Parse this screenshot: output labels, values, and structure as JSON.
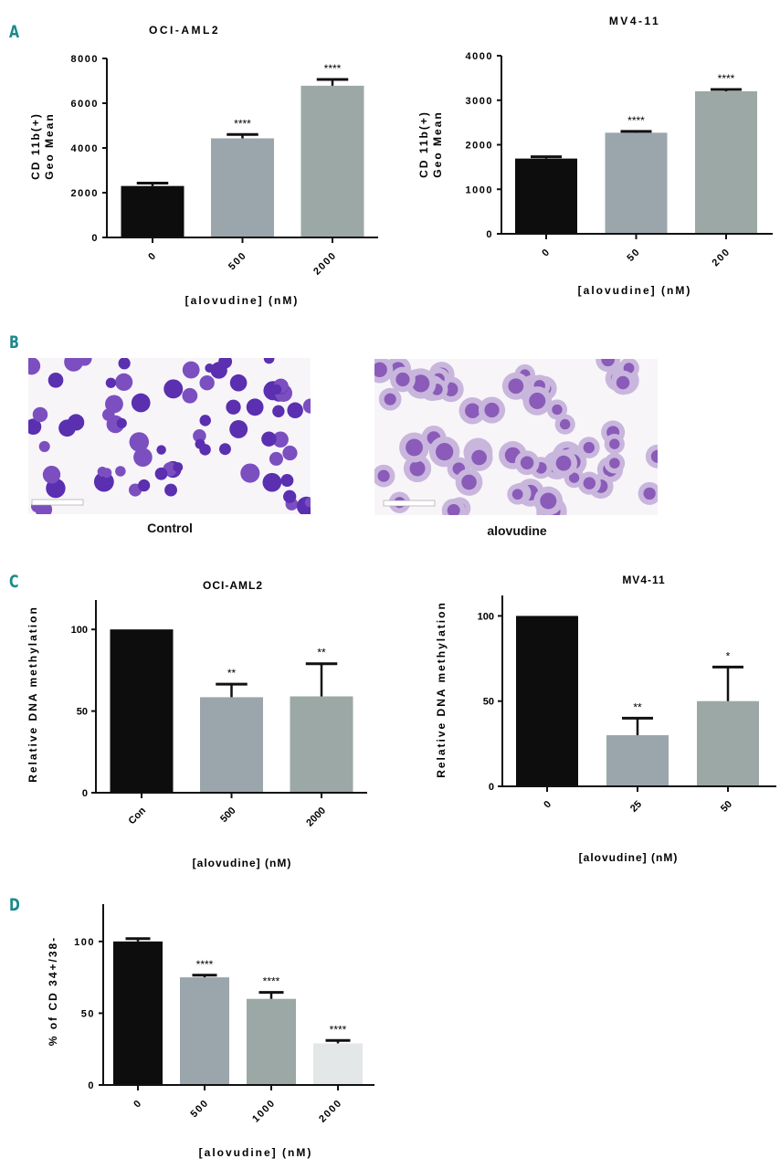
{
  "panels": {
    "a": "A",
    "b": "B",
    "c": "C",
    "d": "D"
  },
  "micrographs": {
    "control_caption": "Control",
    "treated_caption": "alovudine"
  },
  "colors": {
    "black": "#0d0d0d",
    "gray": "#9aa6ab",
    "gray2": "#9ba8a6",
    "light": "#e3e7e7",
    "accent": "#1b8a8c"
  },
  "chart_data": [
    {
      "id": "a-left",
      "type": "bar",
      "title": "OCI-AML2",
      "ylabel": [
        "CD 11b(+)",
        "Geo Mean"
      ],
      "xlabel": "[alovudine] (nM)",
      "categories": [
        "0",
        "500",
        "2000"
      ],
      "values": [
        2300,
        4430,
        6780
      ],
      "errors": [
        130,
        170,
        280
      ],
      "significance": [
        "",
        "****",
        "****"
      ],
      "ylim": [
        0,
        8000
      ],
      "yticks": [
        0,
        2000,
        4000,
        6000,
        8000
      ],
      "bar_colors": [
        "#0d0d0d",
        "#9aa6ab",
        "#9ba8a6"
      ]
    },
    {
      "id": "a-right",
      "type": "bar",
      "title": "MV4-11",
      "ylabel": [
        "CD 11b(+)",
        "Geo Mean"
      ],
      "xlabel": "[alovudine] (nM)",
      "categories": [
        "0",
        "50",
        "200"
      ],
      "values": [
        1690,
        2270,
        3200
      ],
      "errors": [
        40,
        30,
        40
      ],
      "significance": [
        "",
        "****",
        "****"
      ],
      "ylim": [
        0,
        4000
      ],
      "yticks": [
        0,
        1000,
        2000,
        3000,
        4000
      ],
      "bar_colors": [
        "#0d0d0d",
        "#9aa6ab",
        "#9ba8a6"
      ]
    },
    {
      "id": "c-left",
      "type": "bar",
      "title": "OCI-AML2",
      "ylabel": [
        "Relative DNA methylation"
      ],
      "xlabel": "[alovudine] (nM)",
      "categories": [
        "Con",
        "500",
        "2000"
      ],
      "values": [
        100,
        58.5,
        59
      ],
      "errors": [
        0,
        8,
        20
      ],
      "significance": [
        "",
        "**",
        "**"
      ],
      "ylim": [
        0,
        118
      ],
      "yticks": [
        0,
        50,
        100
      ],
      "bar_colors": [
        "#0d0d0d",
        "#9aa6ab",
        "#9ba8a6"
      ]
    },
    {
      "id": "c-right",
      "type": "bar",
      "title": "MV4-11",
      "ylabel": [
        "Relative DNA methylation"
      ],
      "xlabel": "[alovudine] (nM)",
      "categories": [
        "0",
        "25",
        "50"
      ],
      "values": [
        100,
        30,
        50
      ],
      "errors": [
        0,
        10,
        20
      ],
      "significance": [
        "",
        "**",
        "*"
      ],
      "ylim": [
        0,
        112
      ],
      "yticks": [
        0,
        50,
        100
      ],
      "bar_colors": [
        "#0d0d0d",
        "#9aa6ab",
        "#9ba8a6"
      ]
    },
    {
      "id": "d",
      "type": "bar",
      "title": "",
      "ylabel": [
        "% of CD 34+/38-"
      ],
      "xlabel": "[alovudine] (nM)",
      "categories": [
        "0",
        "500",
        "1000",
        "2000"
      ],
      "values": [
        100,
        75,
        60,
        29
      ],
      "errors": [
        2,
        1.5,
        4.5,
        2
      ],
      "significance": [
        "",
        "****",
        "****",
        "****"
      ],
      "ylim": [
        0,
        126
      ],
      "yticks": [
        0,
        50,
        100
      ],
      "bar_colors": [
        "#0d0d0d",
        "#9aa6ab",
        "#9ba8a6",
        "#e3e7e7"
      ]
    }
  ]
}
